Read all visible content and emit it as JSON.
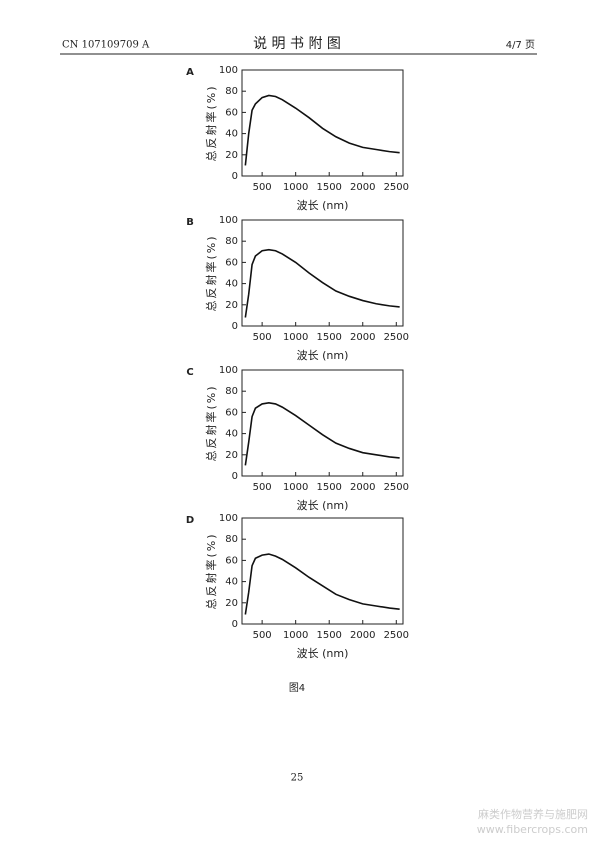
{
  "header": {
    "left": "CN 107109709 A",
    "center": "说 明 书 附 图",
    "right": "4/7 页"
  },
  "chart_data": [
    {
      "type": "line",
      "label": "A",
      "ylabel": "总反射率(%)",
      "xlabel": "波长 (nm)",
      "x": [
        250,
        300,
        350,
        400,
        500,
        600,
        700,
        800,
        900,
        1000,
        1200,
        1400,
        1600,
        1800,
        2000,
        2200,
        2400,
        2550
      ],
      "series": [
        {
          "color": "#111111",
          "values": [
            10,
            40,
            62,
            68,
            74,
            76,
            75,
            72,
            68,
            64,
            55,
            45,
            37,
            31,
            27,
            25,
            23,
            22
          ]
        }
      ],
      "xlim": [
        200,
        2600
      ],
      "ylim": [
        0,
        100
      ],
      "xticks": [
        500,
        1000,
        1500,
        2000,
        2500
      ],
      "yticks": [
        0,
        20,
        40,
        60,
        80,
        100
      ]
    },
    {
      "type": "line",
      "label": "B",
      "ylabel": "总反射率(%)",
      "xlabel": "波长 (nm)",
      "x": [
        250,
        300,
        350,
        400,
        500,
        600,
        700,
        800,
        900,
        1000,
        1200,
        1400,
        1600,
        1800,
        2000,
        2200,
        2400,
        2550
      ],
      "series": [
        {
          "color": "#111111",
          "values": [
            8,
            30,
            58,
            66,
            71,
            72,
            71,
            68,
            64,
            60,
            50,
            41,
            33,
            28,
            24,
            21,
            19,
            18
          ]
        }
      ],
      "xlim": [
        200,
        2600
      ],
      "ylim": [
        0,
        100
      ],
      "xticks": [
        500,
        1000,
        1500,
        2000,
        2500
      ],
      "yticks": [
        0,
        20,
        40,
        60,
        80,
        100
      ]
    },
    {
      "type": "line",
      "label": "C",
      "ylabel": "总反射率(%)",
      "xlabel": "波长 (nm)",
      "x": [
        250,
        300,
        350,
        400,
        500,
        600,
        700,
        800,
        900,
        1000,
        1200,
        1400,
        1600,
        1800,
        2000,
        2200,
        2400,
        2550
      ],
      "series": [
        {
          "color": "#111111",
          "values": [
            10,
            32,
            56,
            64,
            68,
            69,
            68,
            65,
            61,
            57,
            48,
            39,
            31,
            26,
            22,
            20,
            18,
            17
          ]
        }
      ],
      "xlim": [
        200,
        2600
      ],
      "ylim": [
        0,
        100
      ],
      "xticks": [
        500,
        1000,
        1500,
        2000,
        2500
      ],
      "yticks": [
        0,
        20,
        40,
        60,
        80,
        100
      ]
    },
    {
      "type": "line",
      "label": "D",
      "ylabel": "总反射率(%)",
      "xlabel": "波长 (nm)",
      "x": [
        250,
        300,
        350,
        400,
        500,
        600,
        700,
        800,
        900,
        1000,
        1200,
        1400,
        1600,
        1800,
        2000,
        2200,
        2400,
        2550
      ],
      "series": [
        {
          "color": "#111111",
          "values": [
            9,
            30,
            55,
            62,
            65,
            66,
            64,
            61,
            57,
            53,
            44,
            36,
            28,
            23,
            19,
            17,
            15,
            14
          ]
        }
      ],
      "xlim": [
        200,
        2600
      ],
      "ylim": [
        0,
        100
      ],
      "xticks": [
        500,
        1000,
        1500,
        2000,
        2500
      ],
      "yticks": [
        0,
        20,
        40,
        60,
        80,
        100
      ]
    }
  ],
  "caption": "图4",
  "page_number": "25",
  "watermark": {
    "line1": "麻类作物营养与施肥网",
    "line2": "www.fibercrops.com"
  }
}
